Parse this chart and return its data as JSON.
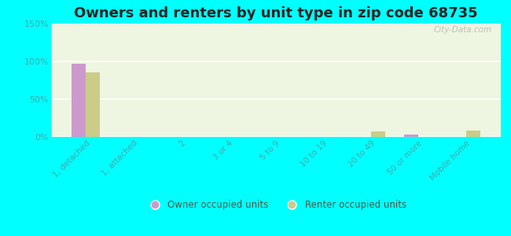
{
  "title": "Owners and renters by unit type in zip code 68735",
  "categories": [
    "1, detached",
    "1, attached",
    "2",
    "3 or 4",
    "5 to 9",
    "10 to 19",
    "20 to 49",
    "50 or more",
    "Mobile home"
  ],
  "owner_values": [
    97,
    0,
    0,
    0,
    0,
    0,
    0,
    3,
    0
  ],
  "renter_values": [
    85,
    0,
    0,
    0,
    0,
    0,
    7,
    0,
    8
  ],
  "owner_color": "#cc99cc",
  "renter_color": "#cccc88",
  "ylim": [
    0,
    150
  ],
  "yticks": [
    0,
    50,
    100,
    150
  ],
  "ytick_labels": [
    "0%",
    "50%",
    "100%",
    "150%"
  ],
  "background_color": "#00ffff",
  "bar_width": 0.3,
  "title_fontsize": 13,
  "watermark": "City-Data.com",
  "legend_owner": "Owner occupied units",
  "legend_renter": "Renter occupied units",
  "tick_color": "#44aaaa",
  "label_color": "#888866"
}
